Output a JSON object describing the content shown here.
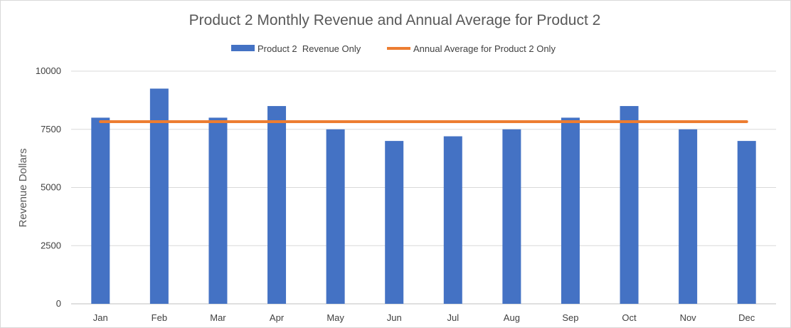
{
  "chart_data": {
    "type": "bar",
    "title": "Product 2 Monthly Revenue and Annual Average for Product 2",
    "xlabel": "",
    "ylabel": "Revenue Dollars",
    "categories": [
      "Jan",
      "Feb",
      "Mar",
      "Apr",
      "May",
      "Jun",
      "Jul",
      "Aug",
      "Sep",
      "Oct",
      "Nov",
      "Dec"
    ],
    "series": [
      {
        "name": "Product 2  Revenue Only",
        "type": "bar",
        "color": "#4472C4",
        "values": [
          8000,
          9250,
          8000,
          8500,
          7500,
          7000,
          7200,
          7500,
          8000,
          8500,
          7500,
          7000
        ]
      },
      {
        "name": "Annual Average for Product 2 Only",
        "type": "line",
        "color": "#ED7D31",
        "values": [
          7829,
          7829,
          7829,
          7829,
          7829,
          7829,
          7829,
          7829,
          7829,
          7829,
          7829,
          7829
        ]
      }
    ],
    "ylim": [
      0,
      10000
    ],
    "yticks": [
      "0",
      "2500",
      "5000",
      "7500",
      "10000"
    ],
    "grid": true,
    "legend_position": "top-center"
  }
}
